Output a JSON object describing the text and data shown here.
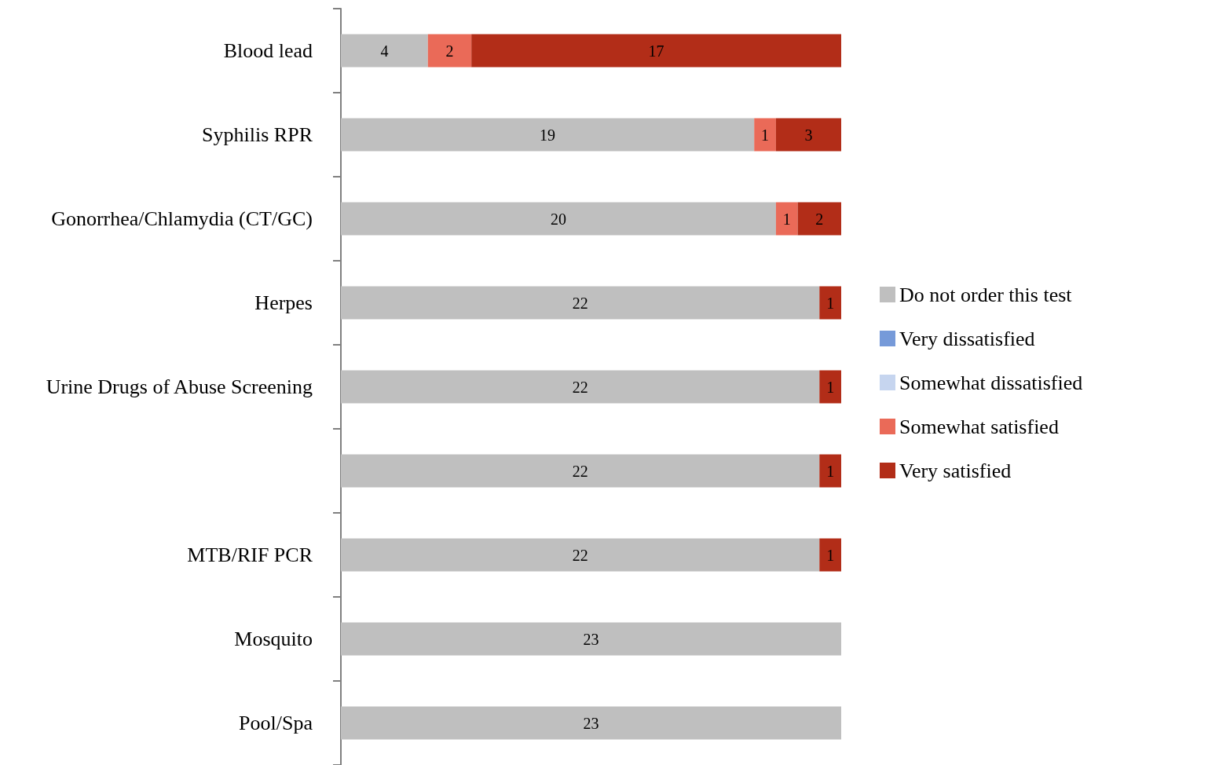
{
  "chart_data": {
    "type": "bar",
    "orientation": "horizontal",
    "stacked": true,
    "data_labels": true,
    "legend": "right",
    "categories": [
      "Blood lead",
      "Syphilis RPR",
      "Gonorrhea/Chlamydia (CT/GC)",
      "Herpes",
      "Urine Drugs of Abuse Screening",
      null,
      "MTB/RIF PCR",
      "Mosquito",
      "Pool/Spa"
    ],
    "series": [
      {
        "name": "Do not order this test",
        "color": "#bfbfbf",
        "values": [
          4,
          19,
          20,
          22,
          22,
          22,
          22,
          23,
          23
        ]
      },
      {
        "name": "Very dissatisfied",
        "color": "#769ad9",
        "values": [
          null,
          null,
          null,
          null,
          null,
          null,
          null,
          null,
          null
        ]
      },
      {
        "name": "Somewhat dissatisfied",
        "color": "#c6d5ef",
        "values": [
          null,
          null,
          null,
          null,
          null,
          null,
          null,
          null,
          null
        ]
      },
      {
        "name": "Somewhat satisfied",
        "color": "#ea6a58",
        "values": [
          2,
          1,
          1,
          null,
          null,
          null,
          null,
          null,
          null
        ]
      },
      {
        "name": "Very satisfied",
        "color": "#b22d18",
        "values": [
          17,
          3,
          2,
          1,
          1,
          1,
          1,
          null,
          null
        ]
      }
    ]
  }
}
